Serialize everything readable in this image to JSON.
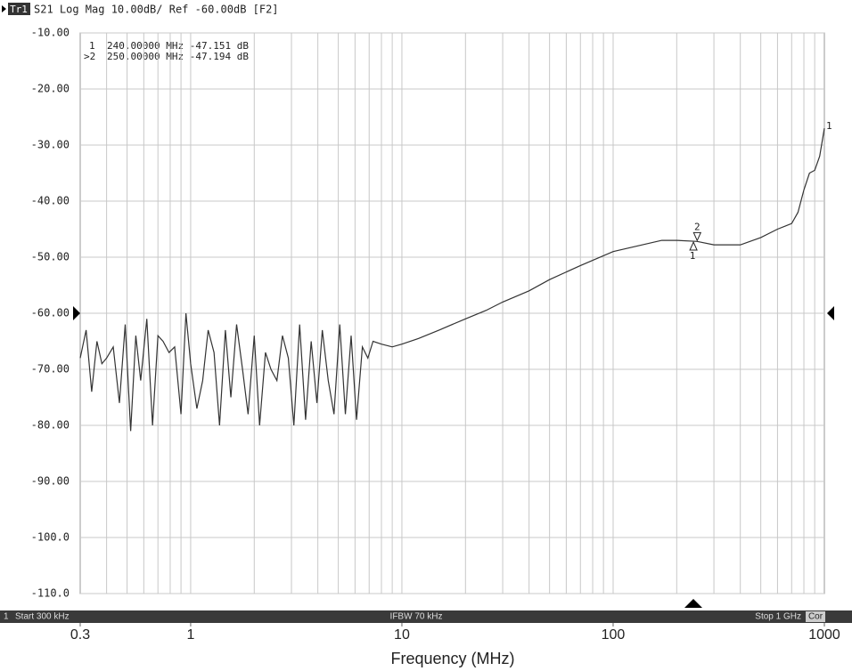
{
  "chart_data": {
    "type": "line",
    "header_tag": "Tr1",
    "header": "S21 Log Mag 10.00dB/ Ref -60.00dB [F2]",
    "marker_table": [
      "1",
      "240.00000 MHz -47.151 dB",
      ">2",
      "250.00000 MHz -47.194 dB"
    ],
    "x_label": "Frequency (MHz)",
    "status": {
      "channel": "1",
      "start": "Start 300 kHz",
      "ifbw": "IFBW 70 kHz",
      "stop": "Stop 1 GHz",
      "cor": "Cor"
    },
    "x_log": true,
    "xlim": [
      0.3,
      1000
    ],
    "xticks": [
      0.3,
      1,
      10,
      100,
      1000
    ],
    "xgrid": [
      0.4,
      0.5,
      0.6,
      0.7,
      0.8,
      0.9,
      1,
      2,
      3,
      4,
      5,
      6,
      7,
      8,
      9,
      10,
      20,
      30,
      40,
      50,
      60,
      70,
      80,
      90,
      100,
      200,
      300,
      400,
      500,
      600,
      700,
      800,
      900
    ],
    "ylim": [
      -110,
      -10
    ],
    "yticks": [
      {
        "value": -10,
        "label": "-10.00"
      },
      {
        "value": -20,
        "label": "-20.00"
      },
      {
        "value": -30,
        "label": "-30.00"
      },
      {
        "value": -40,
        "label": "-40.00"
      },
      {
        "value": -50,
        "label": "-50.00"
      },
      {
        "value": -60,
        "label": "-60.00"
      },
      {
        "value": -70,
        "label": "-70.00"
      },
      {
        "value": -80,
        "label": "-80.00"
      },
      {
        "value": -90,
        "label": "-90.00"
      },
      {
        "value": -100,
        "label": "-100.0"
      },
      {
        "value": -110,
        "label": "-110.0"
      }
    ],
    "grid": true,
    "ref_level": -60,
    "color": "#333333",
    "trace_label": "1",
    "x": [
      0.3,
      0.32,
      0.34,
      0.36,
      0.38,
      0.4,
      0.43,
      0.46,
      0.49,
      0.52,
      0.55,
      0.58,
      0.62,
      0.66,
      0.7,
      0.74,
      0.79,
      0.84,
      0.9,
      0.95,
      1.0,
      1.07,
      1.14,
      1.21,
      1.29,
      1.37,
      1.46,
      1.55,
      1.65,
      1.76,
      1.87,
      2.0,
      2.12,
      2.26,
      2.4,
      2.56,
      2.72,
      2.9,
      3.08,
      3.28,
      3.5,
      3.72,
      3.96,
      4.2,
      4.48,
      4.77,
      5.08,
      5.4,
      5.75,
      6.1,
      6.5,
      6.9,
      7.3,
      8,
      9,
      10,
      12,
      15,
      20,
      25,
      30,
      40,
      50,
      70,
      100,
      130,
      170,
      200,
      240,
      250,
      300,
      400,
      500,
      600,
      700,
      750,
      800,
      850,
      900,
      950,
      1000
    ],
    "values": [
      -68,
      -63,
      -74,
      -65,
      -69,
      -68,
      -66,
      -76,
      -62,
      -81,
      -64,
      -72,
      -61,
      -80,
      -64,
      -65,
      -67,
      -66,
      -78,
      -60,
      -69,
      -77,
      -72,
      -63,
      -67,
      -80,
      -63,
      -75,
      -62,
      -70,
      -78,
      -64,
      -80,
      -67,
      -70,
      -72,
      -64,
      -68,
      -80,
      -62,
      -79,
      -65,
      -76,
      -63,
      -72,
      -78,
      -62,
      -78,
      -64,
      -79,
      -66,
      -68,
      -65,
      -65.5,
      -66,
      -65.5,
      -64.5,
      -63,
      -61,
      -59.5,
      -58,
      -56,
      -54,
      -51.5,
      -49,
      -48,
      -47,
      -47,
      -47.151,
      -47.194,
      -47.8,
      -47.8,
      -46.5,
      -45,
      -44,
      -42,
      -38,
      -35,
      -34.5,
      -32,
      -27
    ],
    "markers": [
      {
        "label": "1",
        "x": 240,
        "value": -47.151
      },
      {
        "label": "2",
        "x": 250,
        "value": -47.194
      }
    ]
  }
}
